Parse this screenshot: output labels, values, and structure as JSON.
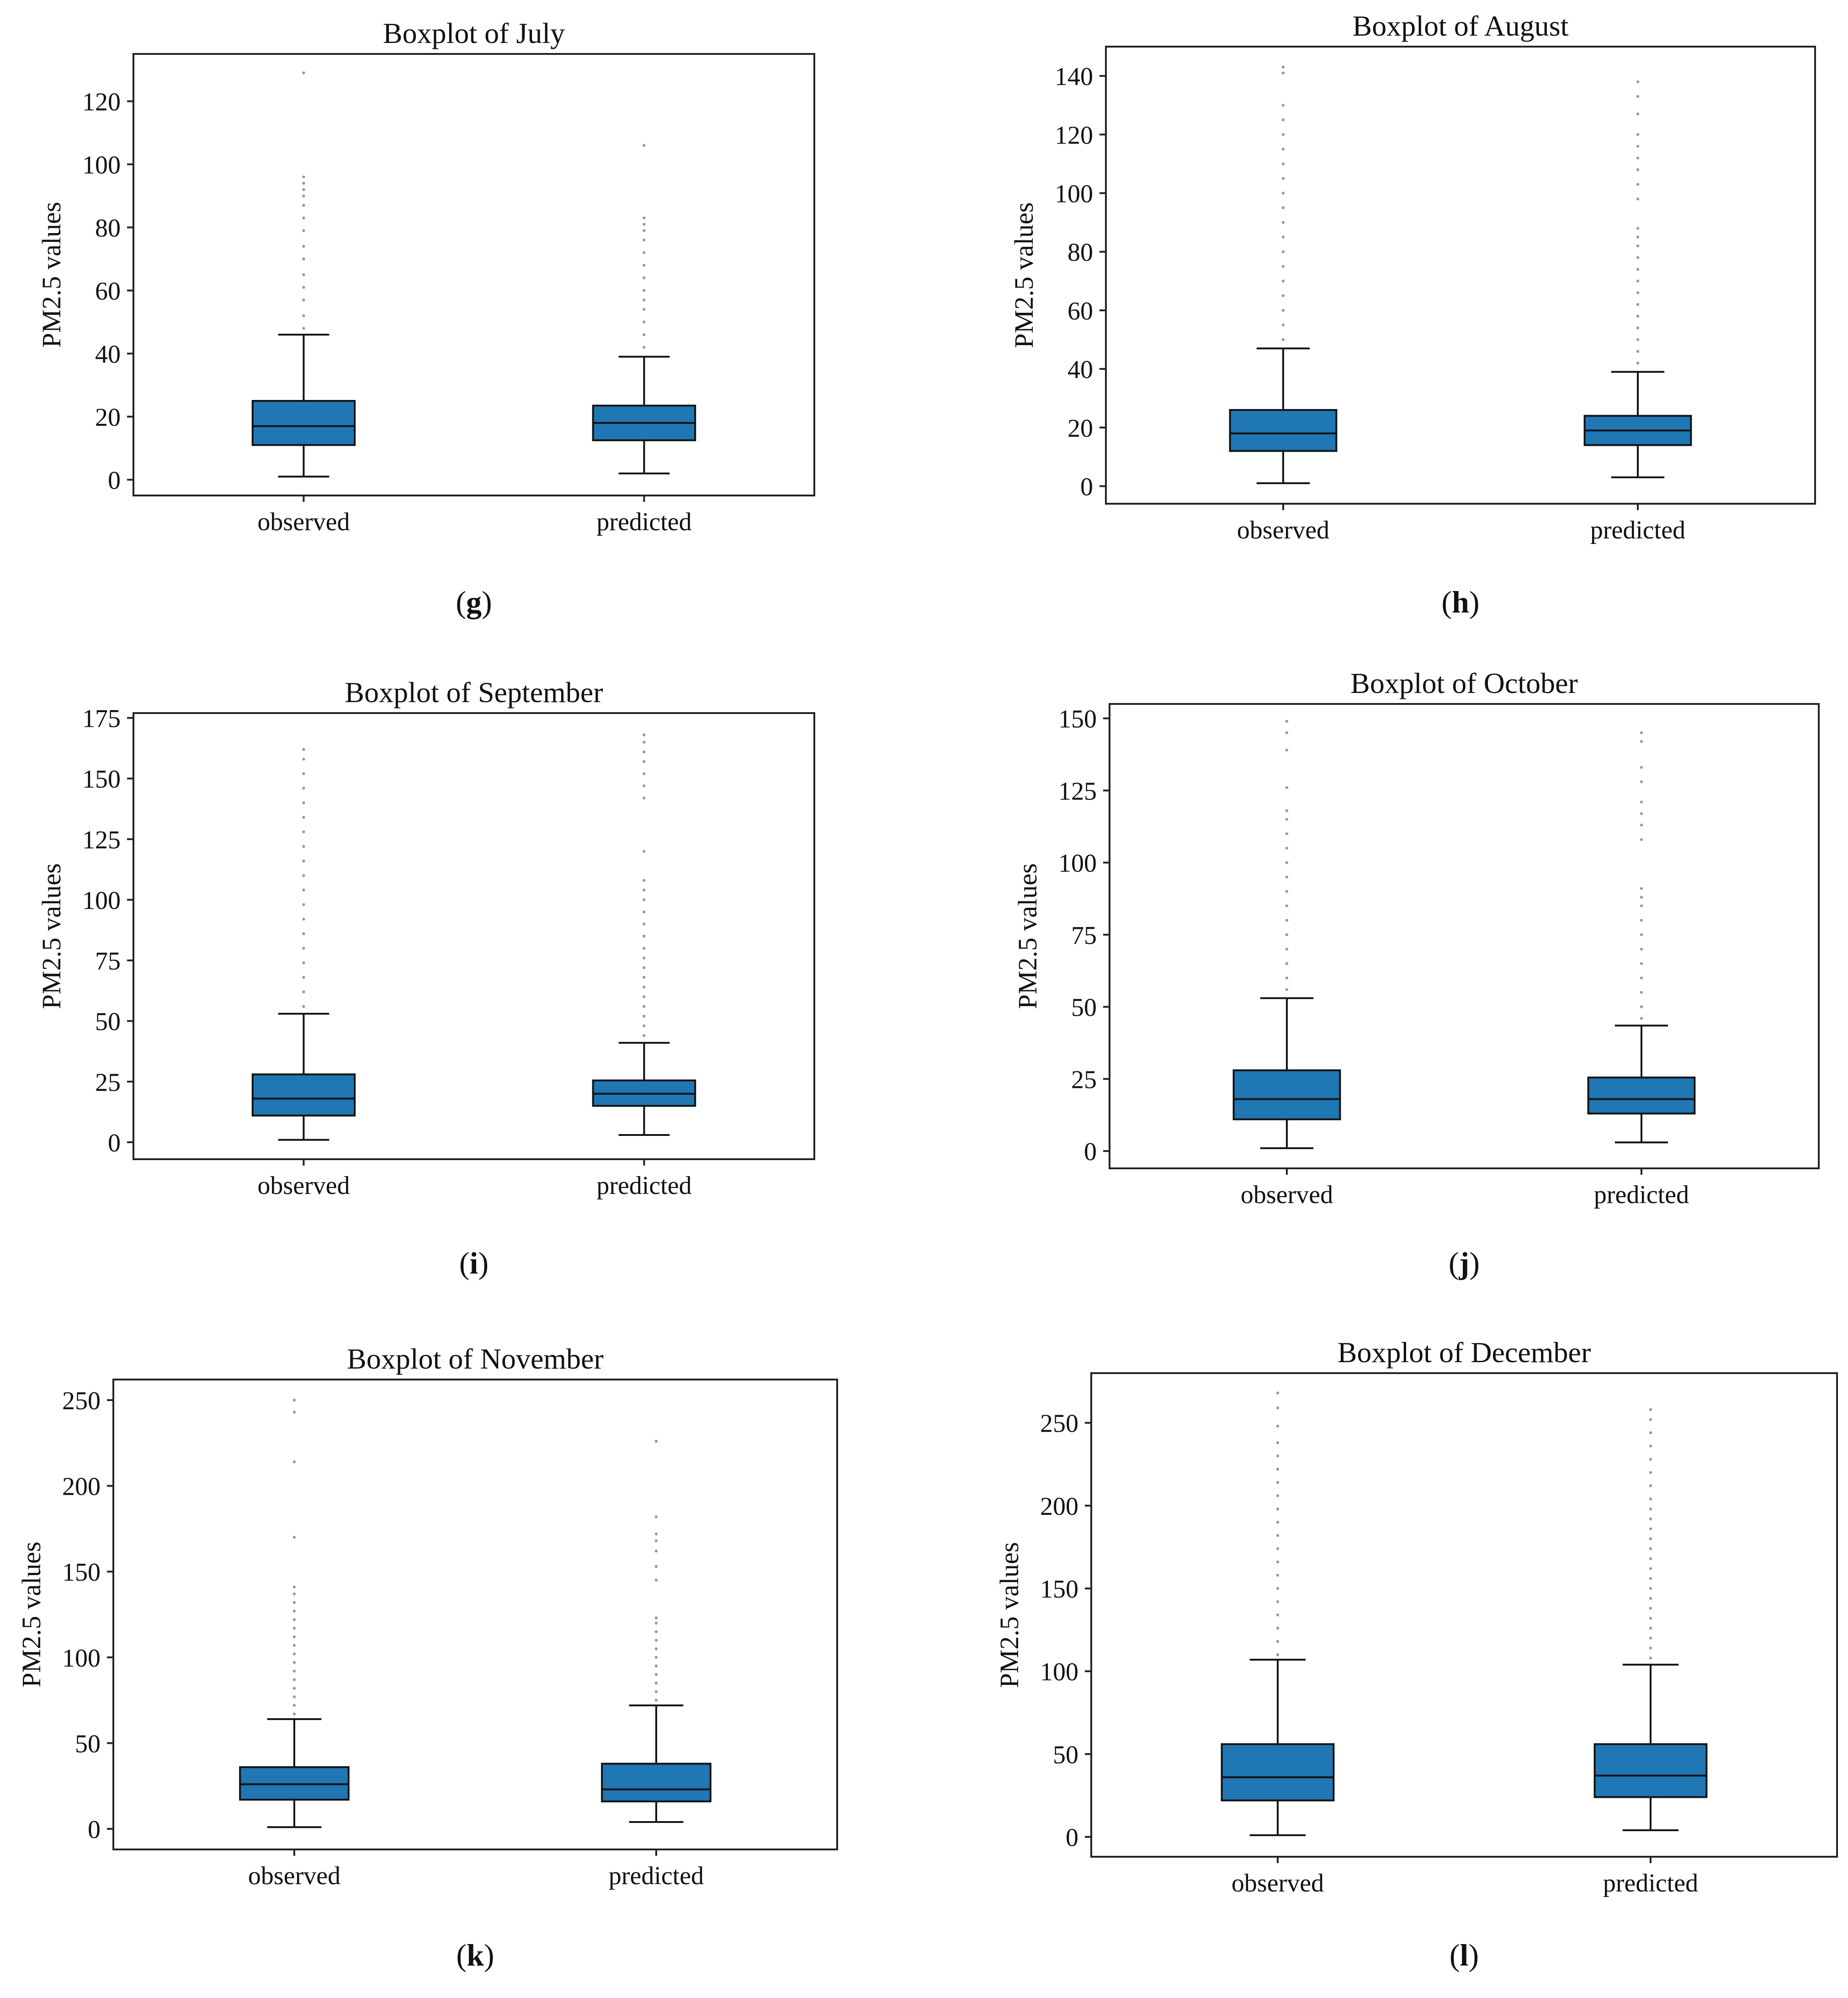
{
  "figure": {
    "box_color": "#1f77b4",
    "outlier_color": "#9a9a9a",
    "line_color": "#111111"
  },
  "chart_data": [
    {
      "type": "boxplot",
      "panel_label": "g",
      "title": "Boxplot of July",
      "ylabel": "PM2.5 values",
      "ylim": [
        -5,
        135
      ],
      "yticks": [
        0,
        20,
        40,
        60,
        80,
        100,
        120
      ],
      "categories": [
        "observed",
        "predicted"
      ],
      "boxes": [
        {
          "name": "observed",
          "whisker_low": 1,
          "q1": 11,
          "median": 17,
          "q3": 25,
          "whisker_high": 46,
          "outliers": [
            48,
            52,
            57,
            61,
            65,
            70,
            74,
            79,
            83,
            87,
            90,
            92,
            94,
            96,
            129
          ]
        },
        {
          "name": "predicted",
          "whisker_low": 2,
          "q1": 12.5,
          "median": 18,
          "q3": 23.5,
          "whisker_high": 39,
          "outliers": [
            42,
            46,
            50,
            54,
            57,
            60,
            64,
            68,
            72,
            76,
            79,
            81,
            83,
            106
          ]
        }
      ]
    },
    {
      "type": "boxplot",
      "panel_label": "h",
      "title": "Boxplot of August",
      "ylabel": "PM2.5 values",
      "ylim": [
        -6,
        150
      ],
      "yticks": [
        0,
        20,
        40,
        60,
        80,
        100,
        120,
        140
      ],
      "categories": [
        "observed",
        "predicted"
      ],
      "boxes": [
        {
          "name": "observed",
          "whisker_low": 1,
          "q1": 12,
          "median": 18,
          "q3": 26,
          "whisker_high": 47,
          "outliers": [
            50,
            55,
            60,
            65,
            70,
            75,
            80,
            85,
            90,
            95,
            100,
            105,
            110,
            115,
            120,
            125,
            130,
            141,
            143
          ]
        },
        {
          "name": "predicted",
          "whisker_low": 3,
          "q1": 14,
          "median": 19,
          "q3": 24,
          "whisker_high": 39,
          "outliers": [
            42,
            46,
            50,
            54,
            58,
            62,
            66,
            70,
            74,
            78,
            82,
            85,
            88,
            98,
            103,
            108,
            112,
            116,
            120,
            127,
            133,
            138
          ]
        }
      ]
    },
    {
      "type": "boxplot",
      "panel_label": "i",
      "title": "Boxplot of September",
      "ylabel": "PM2.5 values",
      "ylim": [
        -7,
        177
      ],
      "yticks": [
        0,
        25,
        50,
        75,
        100,
        125,
        150,
        175
      ],
      "categories": [
        "observed",
        "predicted"
      ],
      "boxes": [
        {
          "name": "observed",
          "whisker_low": 1,
          "q1": 11,
          "median": 18,
          "q3": 28,
          "whisker_high": 53,
          "outliers": [
            56,
            62,
            68,
            74,
            80,
            86,
            92,
            98,
            104,
            110,
            116,
            122,
            128,
            134,
            140,
            146,
            152,
            158,
            162
          ]
        },
        {
          "name": "predicted",
          "whisker_low": 3,
          "q1": 15,
          "median": 20,
          "q3": 25.5,
          "whisker_high": 41,
          "outliers": [
            44,
            48,
            52,
            56,
            60,
            64,
            68,
            72,
            76,
            80,
            85,
            90,
            95,
            100,
            104,
            108,
            120,
            142,
            147,
            152,
            157,
            161,
            165,
            168
          ]
        }
      ]
    },
    {
      "type": "boxplot",
      "panel_label": "j",
      "title": "Boxplot of October",
      "ylabel": "PM2.5 values",
      "ylim": [
        -6,
        155
      ],
      "yticks": [
        0,
        25,
        50,
        75,
        100,
        125,
        150
      ],
      "categories": [
        "observed",
        "predicted"
      ],
      "boxes": [
        {
          "name": "observed",
          "whisker_low": 1,
          "q1": 11,
          "median": 18,
          "q3": 28,
          "whisker_high": 53,
          "outliers": [
            56,
            60,
            65,
            70,
            75,
            80,
            85,
            90,
            95,
            100,
            105,
            110,
            115,
            118,
            126,
            139,
            145,
            149
          ]
        },
        {
          "name": "predicted",
          "whisker_low": 3,
          "q1": 13,
          "median": 18,
          "q3": 25.5,
          "whisker_high": 43.5,
          "outliers": [
            46,
            50,
            55,
            60,
            65,
            70,
            75,
            80,
            85,
            88,
            91,
            108,
            113,
            117,
            121,
            128,
            133,
            142,
            145
          ]
        }
      ]
    },
    {
      "type": "boxplot",
      "panel_label": "k",
      "title": "Boxplot of November",
      "ylabel": "PM2.5 values",
      "ylim": [
        -12,
        262
      ],
      "yticks": [
        0,
        50,
        100,
        150,
        200,
        250
      ],
      "categories": [
        "observed",
        "predicted"
      ],
      "boxes": [
        {
          "name": "observed",
          "whisker_low": 1,
          "q1": 17,
          "median": 26,
          "q3": 36,
          "whisker_high": 64,
          "outliers": [
            67,
            72,
            77,
            82,
            87,
            92,
            97,
            102,
            107,
            112,
            117,
            122,
            127,
            132,
            137,
            141,
            170,
            214,
            243,
            250
          ]
        },
        {
          "name": "predicted",
          "whisker_low": 4,
          "q1": 16,
          "median": 23,
          "q3": 38,
          "whisker_high": 72,
          "outliers": [
            75,
            80,
            85,
            90,
            95,
            100,
            105,
            110,
            115,
            120,
            123,
            145,
            153,
            162,
            168,
            172,
            182,
            226
          ]
        }
      ]
    },
    {
      "type": "boxplot",
      "panel_label": "l",
      "title": "Boxplot of December",
      "ylabel": "PM2.5 values",
      "ylim": [
        -12,
        280
      ],
      "yticks": [
        0,
        50,
        100,
        150,
        200,
        250
      ],
      "categories": [
        "observed",
        "predicted"
      ],
      "boxes": [
        {
          "name": "observed",
          "whisker_low": 1,
          "q1": 22,
          "median": 36,
          "q3": 56,
          "whisker_high": 107,
          "outliers": [
            110,
            118,
            126,
            134,
            142,
            150,
            158,
            166,
            174,
            182,
            190,
            198,
            206,
            214,
            222,
            230,
            238,
            248,
            259,
            268
          ]
        },
        {
          "name": "predicted",
          "whisker_low": 4,
          "q1": 24,
          "median": 37,
          "q3": 56,
          "whisker_high": 104,
          "outliers": [
            108,
            114,
            120,
            126,
            132,
            138,
            144,
            150,
            156,
            162,
            168,
            174,
            180,
            186,
            192,
            198,
            204,
            212,
            220,
            228,
            236,
            244,
            252,
            258
          ]
        }
      ]
    }
  ]
}
